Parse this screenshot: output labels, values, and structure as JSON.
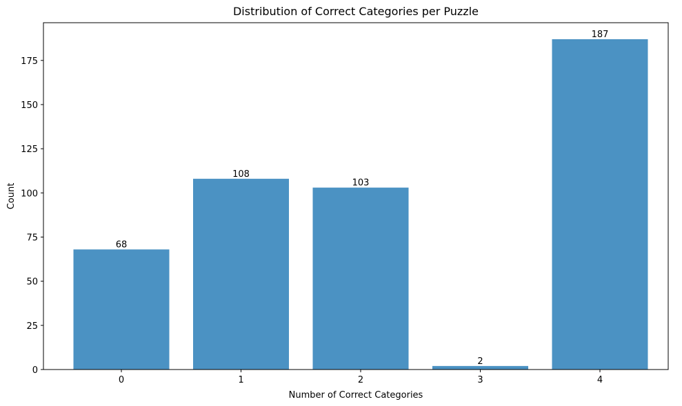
{
  "chart_data": {
    "type": "bar",
    "title": "Distribution of Correct Categories per Puzzle",
    "xlabel": "Number of Correct Categories",
    "ylabel": "Count",
    "categories": [
      "0",
      "1",
      "2",
      "3",
      "4"
    ],
    "values": [
      68,
      108,
      103,
      2,
      187
    ],
    "data_labels": [
      "68",
      "108",
      "103",
      "2",
      "187"
    ],
    "yticks": [
      0,
      25,
      50,
      75,
      100,
      125,
      150,
      175
    ],
    "ylim": [
      0,
      196.35
    ],
    "bar_color": "#4b92c3",
    "grid": false,
    "legend": "none"
  }
}
